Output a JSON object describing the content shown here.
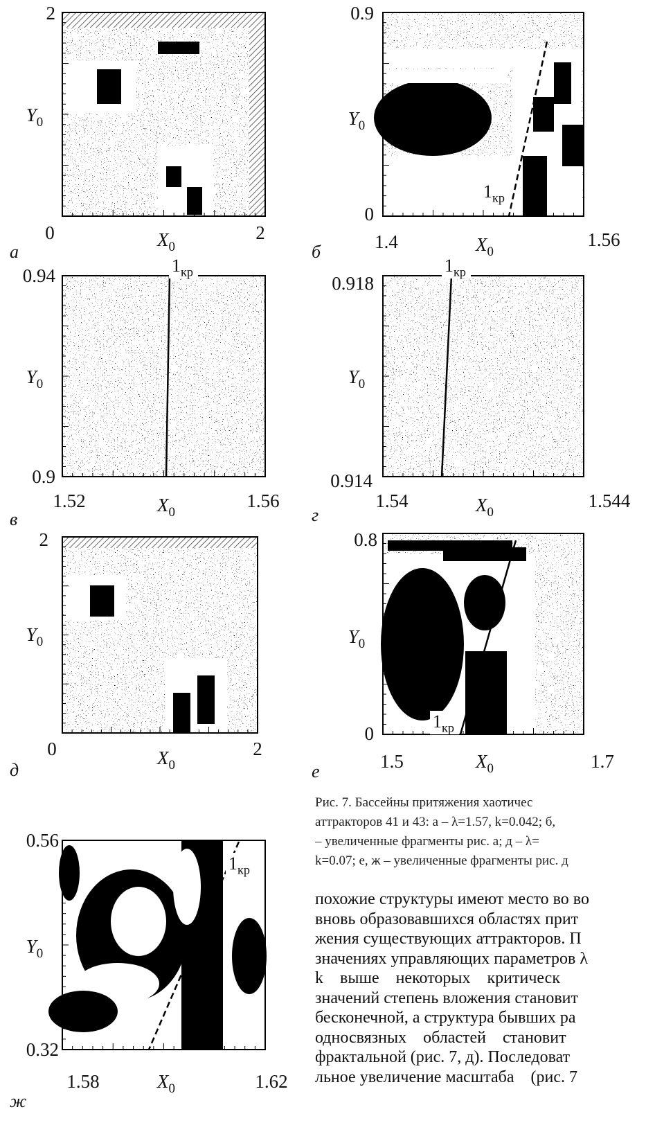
{
  "panels": [
    {
      "letter": "а",
      "y_label": {
        "main": "Y",
        "sub": "0"
      },
      "x_label": {
        "main": "X",
        "sub": "0"
      },
      "y_top": "2",
      "x_left": "0",
      "x_right": "2"
    },
    {
      "letter": "б",
      "y_label": {
        "main": "Y",
        "sub": "0"
      },
      "x_label": {
        "main": "X",
        "sub": "0"
      },
      "y_top": "0.9",
      "y_bottom": "0",
      "x_left": "1.4",
      "x_right": "1.56",
      "marker": {
        "main": "1",
        "sub": "кр"
      }
    },
    {
      "letter": "в",
      "y_label": {
        "main": "Y",
        "sub": "0"
      },
      "x_label": {
        "main": "X",
        "sub": "0"
      },
      "y_top": "0.94",
      "y_bottom": "0.9",
      "x_left": "1.52",
      "x_right": "1.56",
      "marker": {
        "main": "1",
        "sub": "кр"
      }
    },
    {
      "letter": "г",
      "y_label": {
        "main": "Y",
        "sub": "0"
      },
      "x_label": {
        "main": "X",
        "sub": "0"
      },
      "y_top": "0.918",
      "y_bottom": "0.914",
      "x_left": "1.54",
      "x_right": "1.544",
      "marker": {
        "main": "1",
        "sub": "кр"
      }
    },
    {
      "letter": "д",
      "y_label": {
        "main": "Y",
        "sub": "0"
      },
      "x_label": {
        "main": "X",
        "sub": "0"
      },
      "y_top": "2",
      "x_left": "0",
      "x_right": "2"
    },
    {
      "letter": "е",
      "y_label": {
        "main": "Y",
        "sub": "0"
      },
      "x_label": {
        "main": "X",
        "sub": "0"
      },
      "y_top": "0.8",
      "y_bottom": "0",
      "x_left": "1.5",
      "x_right": "1.7",
      "marker": {
        "main": "1",
        "sub": "кр"
      }
    },
    {
      "letter": "ж",
      "y_label": {
        "main": "Y",
        "sub": "0"
      },
      "x_label": {
        "main": "X",
        "sub": "0"
      },
      "y_top": "0.56",
      "y_bottom": "0.32",
      "x_left": "1.58",
      "x_right": "1.62",
      "marker": {
        "main": "1",
        "sub": "кр"
      }
    }
  ],
  "caption": [
    "Рис. 7. Бассейны притяжения хаотичес",
    "аттракторов 41 и 43: а – λ=1.57, k=0.042; б,",
    "– увеличенные фрагменты рис. а; д – λ=",
    "k=0.07; е, ж – увеличенные фрагменты рис. д"
  ],
  "body": [
    "похожие структуры имеют место во во",
    "вновь образовавшихся областях прит",
    "жения существующих аттракторов. П",
    "значениях управляющих параметров λ",
    "k    выше    некоторых    критическ",
    "значений степень вложения становит",
    "бесконечной, а структура бывших ра",
    "односвязных    областей    становит",
    "фрактальной (рис. 7, д). Последоват",
    "льное увеличение масштаба    (рис. 7"
  ]
}
